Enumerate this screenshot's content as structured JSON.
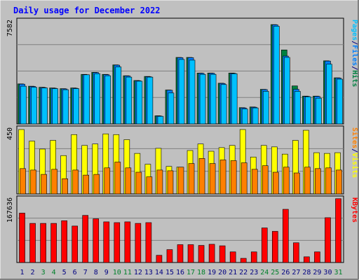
{
  "chart_data": {
    "type": "bar",
    "title": "Daily usage for December 2022",
    "categories": [
      "1",
      "2",
      "3",
      "4",
      "5",
      "6",
      "7",
      "8",
      "9",
      "10",
      "11",
      "12",
      "13",
      "14",
      "15",
      "16",
      "17",
      "18",
      "19",
      "20",
      "21",
      "22",
      "23",
      "24",
      "25",
      "26",
      "27",
      "28",
      "29",
      "30",
      "31"
    ],
    "weekend_days": [
      3,
      4,
      10,
      11,
      17,
      18,
      24,
      25,
      31
    ],
    "panels": [
      {
        "name": "hits-files-pages",
        "ylim": [
          0,
          7582
        ],
        "max_label": "7582",
        "legend": [
          {
            "label": "Pages",
            "color": "#00c0ff"
          },
          {
            "label": "/",
            "color": "#000080"
          },
          {
            "label": "Files",
            "color": "#0080ff"
          },
          {
            "label": "/",
            "color": "#000080"
          },
          {
            "label": "Hits",
            "color": "#008040"
          }
        ],
        "series": [
          {
            "name": "Hits",
            "color": "#008040",
            "values": [
              2950,
              2780,
              2700,
              2650,
              2600,
              2650,
              3650,
              3800,
              3650,
              4350,
              3550,
              3200,
              3500,
              600,
              2500,
              4900,
              4900,
              3750,
              3750,
              3000,
              3750,
              1200,
              1250,
              2550,
              7320,
              5450,
              2800,
              2050,
              2050,
              4650,
              3400
            ]
          },
          {
            "name": "Files",
            "color": "#0080ff",
            "values": [
              2930,
              2760,
              2680,
              2630,
              2580,
              2630,
              3630,
              3780,
              3630,
              4330,
              3530,
              3180,
              3480,
              580,
              2480,
              4880,
              4880,
              3730,
              3730,
              2980,
              3730,
              1180,
              1230,
              2530,
              7300,
              5000,
              2550,
              2030,
              2030,
              4630,
              3380
            ]
          },
          {
            "name": "Pages",
            "color": "#00c0ff",
            "values": [
              2780,
              2700,
              2650,
              2600,
              2520,
              2600,
              3620,
              3700,
              3550,
              4200,
              3450,
              3150,
              3450,
              560,
              2280,
              4750,
              4700,
              3650,
              3650,
              2900,
              3700,
              1100,
              1180,
              2400,
              7200,
              4900,
              2400,
              2000,
              1900,
              4400,
              3300
            ]
          }
        ]
      },
      {
        "name": "visits-sites",
        "ylim": [
          0,
          450
        ],
        "max_label": "450",
        "legend": [
          {
            "label": "Sites",
            "color": "#ff8000"
          },
          {
            "label": "/",
            "color": "#000080"
          },
          {
            "label": "Visits",
            "color": "#ffff00"
          }
        ],
        "series": [
          {
            "name": "Visits",
            "color": "#ffff00",
            "values": [
              445,
              365,
              310,
              370,
              265,
              410,
              335,
              345,
              415,
              410,
              375,
              280,
              205,
              315,
              190,
              185,
              300,
              345,
              295,
              320,
              335,
              445,
              255,
              335,
              325,
              275,
              370,
              440,
              285,
              280,
              285
            ]
          },
          {
            "name": "Sites",
            "color": "#ff8000",
            "values": [
              175,
              165,
              135,
              170,
              105,
              165,
              130,
              135,
              180,
              220,
              180,
              150,
              118,
              165,
              160,
              185,
              210,
              245,
              210,
              235,
              230,
              215,
              170,
              195,
              150,
              185,
              145,
              185,
              175,
              180,
              165
            ]
          }
        ]
      },
      {
        "name": "kbytes",
        "ylim": [
          0,
          167636
        ],
        "max_label": "167636",
        "legend": [
          {
            "label": "KBytes",
            "color": "#ff0000"
          }
        ],
        "series": [
          {
            "name": "KBytes",
            "color": "#ff0000",
            "values": [
              130000,
              103000,
              103000,
              103000,
              110000,
              96000,
              124000,
              115000,
              107000,
              105000,
              107000,
              103000,
              105000,
              19000,
              34000,
              47000,
              47000,
              45000,
              48000,
              44000,
              28000,
              11000,
              28000,
              91000,
              82000,
              140000,
              52000,
              15000,
              28000,
              118000,
              168000
            ]
          }
        ]
      }
    ]
  },
  "colors": {
    "background": "#c0c0c0",
    "plot_background": "#c0c0c0",
    "title": "#0000ff",
    "weekday_label": "#000080",
    "weekend_label": "#00802b",
    "grid": "#808080"
  }
}
